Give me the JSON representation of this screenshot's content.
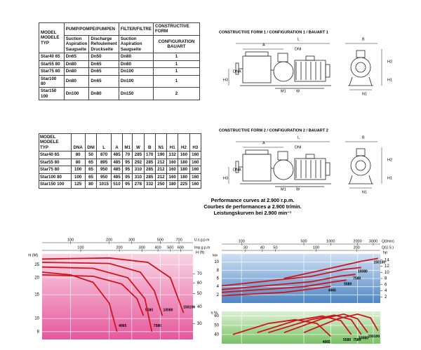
{
  "table1": {
    "model_header": [
      "MODEL",
      "MODELE",
      "TYP"
    ],
    "pump_header": "PUMP/POMPE/PUMPEN",
    "filter_header": "FILTER/FILTRE",
    "form_header": [
      "CONSTRUCTIVE FORM",
      "CONFIGURATION",
      "BAUART"
    ],
    "suction": [
      "Suction",
      "Aspiration",
      "Saugseite"
    ],
    "discharge": [
      "Discharge",
      "Refoulement",
      "Druckseite"
    ],
    "filter_suction": [
      "Suction",
      "Aspiration",
      "Saugseite"
    ],
    "rows": [
      [
        "Star40 65",
        "Dn65",
        "Dn50",
        "Dn80",
        "1"
      ],
      [
        "Star55 80",
        "Dn80",
        "Dn65",
        "Dn80",
        "1"
      ],
      [
        "Star75 80",
        "Dn80",
        "Dn65",
        "Dn100",
        "1"
      ],
      [
        "Star100 80",
        "Dn80",
        "Dn65",
        "Dn100",
        "1"
      ],
      [
        "Star150 100",
        "Dn100",
        "Dn80",
        "Dn150",
        "2"
      ]
    ]
  },
  "table2": {
    "model_header": [
      "MODEL",
      "MODELE",
      "TYP"
    ],
    "columns": [
      "DNA",
      "DNI",
      "L",
      "A",
      "M1",
      "W",
      "B",
      "N1",
      "H1",
      "H2",
      "H3"
    ],
    "rows": [
      [
        "Star40 65",
        80,
        50,
        870,
        485,
        70,
        285,
        170,
        190,
        132,
        160,
        160
      ],
      [
        "Star55 80",
        80,
        65,
        895,
        485,
        95,
        292,
        285,
        212,
        160,
        180,
        160
      ],
      [
        "Star75 80",
        100,
        65,
        950,
        485,
        95,
        310,
        285,
        212,
        160,
        180,
        160
      ],
      [
        "Star100 80",
        100,
        65,
        950,
        485,
        95,
        310,
        285,
        212,
        160,
        180,
        160
      ],
      [
        "Star150 100",
        125,
        80,
        1015,
        510,
        95,
        278,
        332,
        250,
        180,
        225,
        160
      ]
    ]
  },
  "performance": [
    "Performance curves at 2.900 r.p.m.",
    "Courbes de performances ⌀ 2.900 tr/min.",
    "Leistungskurven bei 2.900 min⁻¹"
  ],
  "drawings": [
    {
      "title": "CONSTRUCTIVE FORM 1 / CONFIGURATION 1 / BAUART 1",
      "labels": {
        "L": "L",
        "A": "A",
        "DNI": "DNI",
        "DNA": "DNA",
        "H3": "H3",
        "M1": "M1",
        "W": "W",
        "B": "B",
        "H2": "H2",
        "H1": "H1",
        "N1": "N1"
      }
    },
    {
      "title": "CONSTRUCTIVE FORM 2 / CONFIGURATION 2 / BAUART 2",
      "labels": {
        "L": "L",
        "A": "A",
        "DNI": "DNI",
        "DNA": "DNA",
        "H3": "H3",
        "M1": "M1",
        "W": "W",
        "B": "B",
        "H2": "H2",
        "H1": "H1",
        "N1": "N1"
      }
    }
  ],
  "chart_data": [
    {
      "type": "line",
      "log_x": true,
      "log_y": true,
      "x_axes": [
        {
          "label": "U.s.g.p.m",
          "xlim": [
            60,
            900
          ],
          "xticks": [
            100,
            200,
            300,
            500,
            700
          ]
        },
        {
          "label": "Imp.g.p.m",
          "xlim": [
            50,
            750
          ],
          "xticks": [
            100,
            200,
            300,
            400,
            500,
            600
          ]
        }
      ],
      "panels": [
        {
          "y_label": "H (M)",
          "ylim": [
            7,
            30
          ],
          "yticks": [
            25,
            20,
            15,
            10,
            8
          ],
          "y2_label": "H (ft)",
          "y2lim": [
            23,
            98
          ],
          "y2ticks": [
            70,
            60,
            50,
            40,
            30
          ],
          "series": [
            {
              "name": "4065",
              "color": "#d0141e",
              "x": [
                60,
                100,
                150,
                200,
                230
              ],
              "values": [
                22,
                21,
                18.5,
                13,
                8
              ]
            },
            {
              "name": "5580",
              "color": "#d0141e",
              "x": [
                60,
                150,
                250,
                330,
                370
              ],
              "values": [
                21,
                20.5,
                18,
                14,
                10.5
              ]
            },
            {
              "name": "7580",
              "color": "#d0141e",
              "x": [
                60,
                150,
                280,
                380,
                430
              ],
              "values": [
                24,
                23.5,
                20,
                14,
                8
              ]
            },
            {
              "name": "10080",
              "color": "#d0141e",
              "x": [
                60,
                200,
                350,
                450,
                520
              ],
              "values": [
                26,
                25.5,
                22,
                16,
                10.5
              ]
            },
            {
              "name": "150100",
              "color": "#d0141e",
              "x": [
                60,
                200,
                400,
                600,
                760
              ],
              "values": [
                27.5,
                28,
                26,
                20,
                11
              ]
            }
          ]
        }
      ]
    },
    {
      "type": "line",
      "log_x": true,
      "log_y": false,
      "x_axes": [
        {
          "label": "Q(l/min)",
          "xlim": [
            60,
            3600
          ],
          "xticks": [
            100,
            500,
            1000,
            2000,
            3000
          ]
        },
        {
          "label": "Q(U.S.)",
          "xlim": [
            20,
            300
          ],
          "xticks": [
            30,
            40,
            50,
            100,
            200
          ]
        }
      ],
      "panels": [
        {
          "y_label": "kw",
          "ylim": [
            0,
            12
          ],
          "yticks": [
            2,
            4,
            6,
            8,
            10
          ],
          "y2_label": "hp",
          "y2lim": [
            0,
            16
          ],
          "y2ticks": [
            2,
            4,
            6,
            8,
            10,
            12,
            14
          ],
          "series": [
            {
              "name": "4065",
              "color": "#d0141e",
              "x": [
                60,
                300,
                700,
                1000
              ],
              "values": [
                1.8,
                2.6,
                3.6,
                4.1
              ]
            },
            {
              "name": "5580",
              "color": "#d0141e",
              "x": [
                60,
                500,
                1100,
                1500
              ],
              "values": [
                2.6,
                4,
                5.2,
                5.6
              ]
            },
            {
              "name": "7580",
              "color": "#d0141e",
              "x": [
                60,
                600,
                1300,
                1900
              ],
              "values": [
                3.3,
                5.2,
                6.6,
                7
              ]
            },
            {
              "name": "10080",
              "color": "#d0141e",
              "x": [
                60,
                600,
                1400,
                2200
              ],
              "values": [
                4.2,
                6.5,
                8.2,
                8.7
              ]
            },
            {
              "name": "150100",
              "color": "#d0141e",
              "x": [
                300,
                1000,
                2200,
                3400
              ],
              "values": [
                6,
                8.5,
                10.2,
                10.9
              ]
            }
          ]
        },
        {
          "y_label": "η %",
          "ylim": [
            30,
            65
          ],
          "yticks": [
            40,
            50,
            60
          ],
          "series": [
            {
              "name": "4065",
              "color": "#d0141e",
              "x": [
                80,
                200,
                400,
                700,
                1000
              ],
              "values": [
                40,
                52,
                56,
                52,
                38
              ]
            },
            {
              "name": "5580",
              "color": "#d0141e",
              "x": [
                150,
                400,
                800,
                1300,
                1700
              ],
              "values": [
                42,
                55,
                60,
                55,
                40
              ]
            },
            {
              "name": "7580",
              "color": "#d0141e",
              "x": [
                200,
                600,
                1100,
                1700,
                2200
              ],
              "values": [
                42,
                56,
                61,
                56,
                40
              ]
            },
            {
              "name": "10080",
              "color": "#d0141e",
              "x": [
                300,
                800,
                1400,
                2000,
                2600
              ],
              "values": [
                42,
                57,
                62,
                57,
                42
              ]
            },
            {
              "name": "150100",
              "color": "#d0141e",
              "x": [
                500,
                1200,
                2000,
                2800,
                3400
              ],
              "values": [
                42,
                57,
                62,
                58,
                44
              ]
            }
          ]
        }
      ]
    }
  ]
}
